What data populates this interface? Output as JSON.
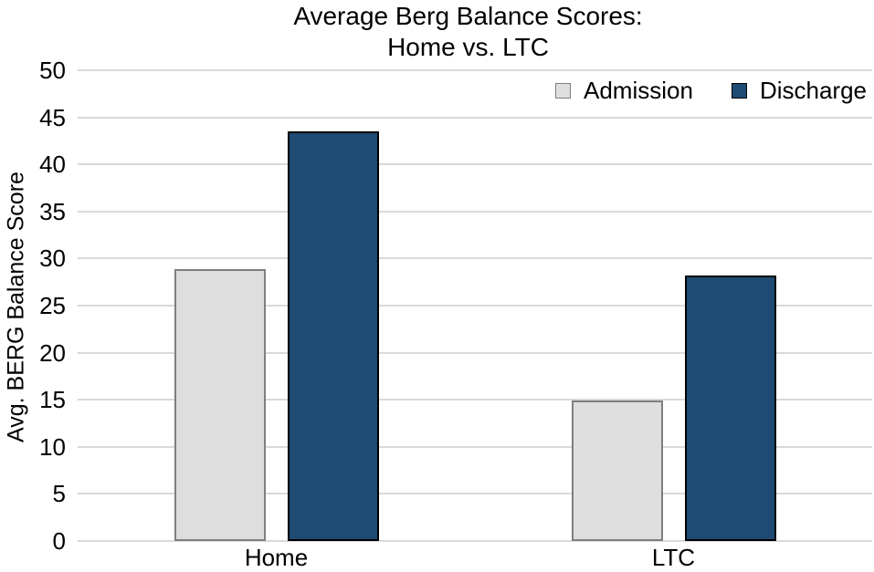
{
  "title": {
    "line1": "Average Berg Balance Scores:",
    "line2": "Home vs. LTC"
  },
  "chart_data": {
    "type": "bar",
    "title": "Average Berg Balance Scores: Home vs. LTC",
    "categories": [
      "Home",
      "LTC"
    ],
    "series": [
      {
        "name": "Admission",
        "values": [
          28.9,
          14.9
        ],
        "fill": "#DEDEDE",
        "border": "#7F7F7F"
      },
      {
        "name": "Discharge",
        "values": [
          43.5,
          28.2
        ],
        "fill": "#1E4B73",
        "border": "#000000"
      }
    ],
    "xlabel": "",
    "ylabel": "Avg. BERG Balance Score",
    "ylim": [
      0,
      50
    ],
    "yticks": [
      0,
      5,
      10,
      15,
      20,
      25,
      30,
      35,
      40,
      45,
      50
    ],
    "grid": true,
    "gridline_color": "#D9D9D9",
    "axis_line_color": "#D9D9D9",
    "text_color": "#000000",
    "background_color": "#FFFFFF",
    "legend_position": "top-right"
  }
}
